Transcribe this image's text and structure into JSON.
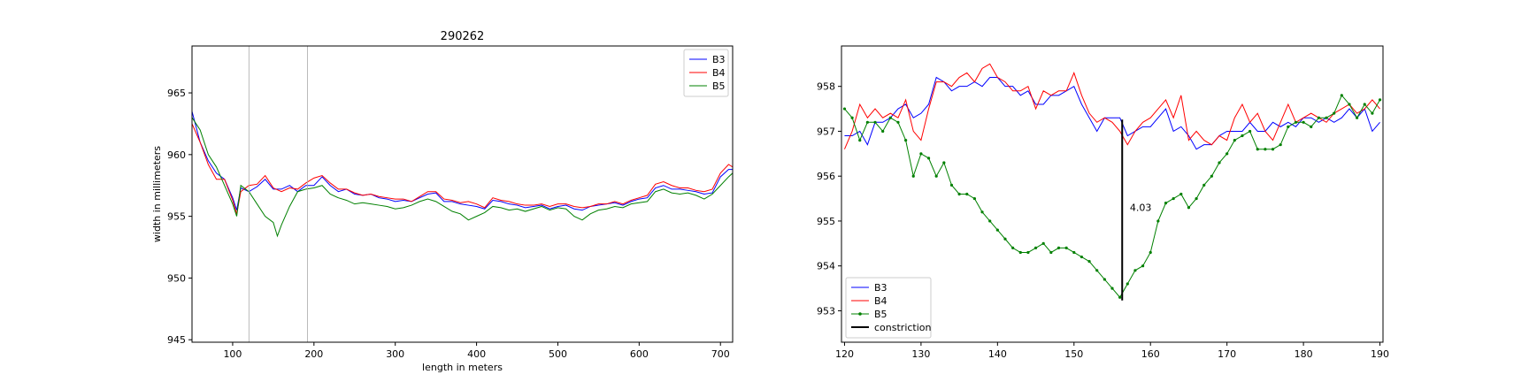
{
  "chart_data": [
    {
      "type": "line",
      "title": "290262",
      "xlabel": "length in meters",
      "ylabel": "width in millimeters",
      "xlim": [
        50,
        715
      ],
      "ylim": [
        944.8,
        968.8
      ],
      "xticks": [
        100,
        200,
        300,
        400,
        500,
        600,
        700
      ],
      "yticks": [
        945,
        950,
        955,
        960,
        965
      ],
      "vlines": [
        120,
        192
      ],
      "legend_position": "upper right",
      "grid": false,
      "series": [
        {
          "name": "B3",
          "color": "#0000ff",
          "x": [
            50,
            60,
            70,
            80,
            90,
            100,
            105,
            110,
            120,
            130,
            140,
            150,
            160,
            170,
            180,
            190,
            200,
            210,
            220,
            230,
            240,
            250,
            260,
            270,
            280,
            290,
            300,
            310,
            320,
            330,
            340,
            350,
            360,
            370,
            380,
            390,
            400,
            410,
            420,
            430,
            440,
            450,
            460,
            470,
            480,
            490,
            500,
            510,
            520,
            530,
            540,
            550,
            560,
            570,
            580,
            590,
            600,
            610,
            620,
            630,
            640,
            650,
            660,
            670,
            680,
            690,
            700,
            710,
            715
          ],
          "y": [
            963.5,
            961.0,
            959.5,
            958.5,
            958.0,
            956.5,
            955.5,
            957.3,
            957.0,
            957.4,
            958.0,
            957.2,
            957.2,
            957.5,
            957.0,
            957.5,
            957.5,
            958.2,
            957.5,
            957.0,
            957.2,
            956.8,
            956.7,
            956.8,
            956.5,
            956.4,
            956.2,
            956.3,
            956.2,
            956.5,
            956.8,
            956.9,
            956.2,
            956.2,
            956.0,
            955.9,
            955.8,
            955.6,
            956.3,
            956.2,
            956.0,
            955.9,
            955.7,
            955.8,
            955.9,
            955.6,
            955.8,
            955.9,
            955.6,
            955.5,
            955.8,
            955.9,
            956.0,
            956.1,
            955.9,
            956.2,
            956.4,
            956.5,
            957.3,
            957.5,
            957.2,
            957.2,
            957.1,
            957.0,
            956.8,
            956.9,
            958.2,
            958.8,
            958.8
          ]
        },
        {
          "name": "B4",
          "color": "#ff0000",
          "x": [
            50,
            60,
            70,
            80,
            90,
            100,
            105,
            110,
            120,
            130,
            140,
            150,
            160,
            170,
            180,
            190,
            200,
            210,
            220,
            230,
            240,
            250,
            260,
            270,
            280,
            290,
            300,
            310,
            320,
            330,
            340,
            350,
            360,
            370,
            380,
            390,
            400,
            410,
            420,
            430,
            440,
            450,
            460,
            470,
            480,
            490,
            500,
            510,
            520,
            530,
            540,
            550,
            560,
            570,
            580,
            590,
            600,
            610,
            620,
            630,
            640,
            650,
            660,
            670,
            680,
            690,
            700,
            710,
            715
          ],
          "y": [
            962.5,
            961.0,
            959.2,
            958.0,
            958.0,
            956.3,
            955.2,
            957.0,
            957.5,
            957.6,
            958.3,
            957.3,
            957.0,
            957.3,
            957.2,
            957.7,
            958.1,
            958.3,
            957.7,
            957.2,
            957.2,
            956.9,
            956.7,
            956.8,
            956.6,
            956.5,
            956.4,
            956.4,
            956.2,
            956.6,
            957.0,
            957.0,
            956.4,
            956.3,
            956.1,
            956.2,
            956.0,
            955.7,
            956.5,
            956.3,
            956.2,
            956.0,
            955.9,
            955.9,
            956.0,
            955.8,
            956.0,
            956.0,
            955.8,
            955.7,
            955.8,
            956.0,
            956.0,
            956.2,
            956.0,
            956.3,
            956.5,
            956.7,
            957.6,
            957.8,
            957.5,
            957.3,
            957.3,
            957.1,
            957.0,
            957.2,
            958.5,
            959.2,
            959.0
          ]
        },
        {
          "name": "B5",
          "color": "#008000",
          "x": [
            50,
            60,
            70,
            80,
            90,
            100,
            105,
            110,
            120,
            130,
            140,
            150,
            155,
            160,
            170,
            180,
            190,
            200,
            210,
            220,
            230,
            240,
            250,
            260,
            270,
            280,
            290,
            300,
            310,
            320,
            330,
            340,
            350,
            360,
            370,
            380,
            390,
            400,
            410,
            420,
            430,
            440,
            450,
            460,
            470,
            480,
            490,
            500,
            510,
            520,
            530,
            540,
            550,
            560,
            570,
            580,
            590,
            600,
            610,
            620,
            630,
            640,
            650,
            660,
            670,
            680,
            690,
            700,
            710,
            715
          ],
          "y": [
            963.0,
            962.0,
            960.0,
            959.0,
            957.5,
            956.0,
            955.0,
            957.5,
            957.0,
            956.0,
            955.0,
            954.5,
            953.4,
            954.3,
            955.8,
            957.0,
            957.2,
            957.3,
            957.5,
            956.8,
            956.5,
            956.3,
            956.0,
            956.1,
            956.0,
            955.9,
            955.8,
            955.6,
            955.7,
            955.9,
            956.2,
            956.4,
            956.2,
            955.8,
            955.4,
            955.2,
            954.7,
            955.0,
            955.3,
            955.8,
            955.7,
            955.5,
            955.6,
            955.4,
            955.6,
            955.8,
            955.5,
            955.7,
            955.6,
            955.0,
            954.7,
            955.2,
            955.5,
            955.6,
            955.8,
            955.7,
            956.0,
            956.1,
            956.2,
            957.0,
            957.2,
            956.9,
            956.8,
            956.9,
            956.7,
            956.4,
            956.8,
            957.5,
            958.2,
            958.5
          ]
        }
      ]
    },
    {
      "type": "line",
      "title": "",
      "xlabel": "",
      "ylabel": "",
      "xlim": [
        119.6,
        190.4
      ],
      "ylim": [
        952.3,
        958.9
      ],
      "xticks": [
        120,
        130,
        140,
        150,
        160,
        170,
        180,
        190
      ],
      "yticks": [
        953,
        954,
        955,
        956,
        957,
        958
      ],
      "legend_position": "lower left",
      "grid": false,
      "series": [
        {
          "name": "B3",
          "color": "#0000ff",
          "x": [
            120,
            121,
            122,
            123,
            124,
            125,
            126,
            127,
            128,
            129,
            130,
            131,
            132,
            133,
            134,
            135,
            136,
            137,
            138,
            139,
            140,
            141,
            142,
            143,
            144,
            145,
            146,
            147,
            148,
            149,
            150,
            151,
            152,
            153,
            154,
            155,
            156,
            157,
            158,
            159,
            160,
            161,
            162,
            163,
            164,
            165,
            166,
            167,
            168,
            169,
            170,
            171,
            172,
            173,
            174,
            175,
            176,
            177,
            178,
            179,
            180,
            181,
            182,
            183,
            184,
            185,
            186,
            187,
            188,
            189,
            190
          ],
          "y": [
            956.9,
            956.9,
            957.0,
            956.7,
            957.2,
            957.2,
            957.3,
            957.5,
            957.6,
            957.3,
            957.4,
            957.6,
            958.2,
            958.1,
            957.9,
            958.0,
            958.0,
            958.1,
            958.0,
            958.2,
            958.2,
            958.0,
            958.0,
            957.8,
            957.9,
            957.6,
            957.6,
            957.8,
            957.8,
            957.9,
            958.0,
            957.6,
            957.3,
            957.0,
            957.3,
            957.3,
            957.3,
            956.9,
            957.0,
            957.1,
            957.1,
            957.3,
            957.5,
            957.0,
            957.1,
            956.9,
            956.6,
            956.7,
            956.7,
            956.9,
            957.0,
            957.0,
            957.0,
            957.2,
            957.0,
            957.0,
            957.2,
            957.1,
            957.2,
            957.1,
            957.3,
            957.3,
            957.2,
            957.3,
            957.2,
            957.3,
            957.5,
            957.3,
            957.5,
            957.0,
            957.2
          ]
        },
        {
          "name": "B4",
          "color": "#ff0000",
          "x": [
            120,
            121,
            122,
            123,
            124,
            125,
            126,
            127,
            128,
            129,
            130,
            131,
            132,
            133,
            134,
            135,
            136,
            137,
            138,
            139,
            140,
            141,
            142,
            143,
            144,
            145,
            146,
            147,
            148,
            149,
            150,
            151,
            152,
            153,
            154,
            155,
            156,
            157,
            158,
            159,
            160,
            161,
            162,
            163,
            164,
            165,
            166,
            167,
            168,
            169,
            170,
            171,
            172,
            173,
            174,
            175,
            176,
            177,
            178,
            179,
            180,
            181,
            182,
            183,
            184,
            185,
            186,
            187,
            188,
            189,
            190
          ],
          "y": [
            956.6,
            957.0,
            957.6,
            957.3,
            957.5,
            957.3,
            957.4,
            957.3,
            957.7,
            957.0,
            956.8,
            957.5,
            958.1,
            958.1,
            958.0,
            958.2,
            958.3,
            958.1,
            958.4,
            958.5,
            958.2,
            958.1,
            957.9,
            957.9,
            958.0,
            957.5,
            957.9,
            957.8,
            957.9,
            957.9,
            958.3,
            957.8,
            957.4,
            957.2,
            957.3,
            957.2,
            957.0,
            956.7,
            957.0,
            957.2,
            957.3,
            957.5,
            957.7,
            957.3,
            957.8,
            956.8,
            957.0,
            956.8,
            956.7,
            956.9,
            956.8,
            957.3,
            957.6,
            957.2,
            957.4,
            957.0,
            956.8,
            957.2,
            957.6,
            957.2,
            957.3,
            957.4,
            957.3,
            957.2,
            957.4,
            957.5,
            957.6,
            957.4,
            957.5,
            957.7,
            957.5
          ]
        },
        {
          "name": "B5",
          "color": "#008000",
          "x": [
            120,
            121,
            122,
            123,
            124,
            125,
            126,
            127,
            128,
            129,
            130,
            131,
            132,
            133,
            134,
            135,
            136,
            137,
            138,
            139,
            140,
            141,
            142,
            143,
            144,
            145,
            146,
            147,
            148,
            149,
            150,
            151,
            152,
            153,
            154,
            155,
            156,
            157,
            158,
            159,
            160,
            161,
            162,
            163,
            164,
            165,
            166,
            167,
            168,
            169,
            170,
            171,
            172,
            173,
            174,
            175,
            176,
            177,
            178,
            179,
            180,
            181,
            182,
            183,
            184,
            185,
            186,
            187,
            188,
            189,
            190
          ],
          "y": [
            957.5,
            957.3,
            956.8,
            957.2,
            957.2,
            957.0,
            957.3,
            957.2,
            956.8,
            956.0,
            956.5,
            956.4,
            956.0,
            956.3,
            955.8,
            955.6,
            955.6,
            955.5,
            955.2,
            955.0,
            954.8,
            954.6,
            954.4,
            954.3,
            954.3,
            954.4,
            954.5,
            954.3,
            954.4,
            954.4,
            954.3,
            954.2,
            954.1,
            953.9,
            953.7,
            953.5,
            953.3,
            953.6,
            953.9,
            954.0,
            954.3,
            955.0,
            955.4,
            955.5,
            955.6,
            955.3,
            955.5,
            955.8,
            956.0,
            956.3,
            956.5,
            956.8,
            956.9,
            957.0,
            956.6,
            956.6,
            956.6,
            956.7,
            957.1,
            957.2,
            957.2,
            957.1,
            957.3,
            957.3,
            957.4,
            957.8,
            957.6,
            957.3,
            957.6,
            957.4,
            957.7
          ]
        },
        {
          "name": "constriction",
          "color": "#000000",
          "x": [
            156.3,
            156.3
          ],
          "y": [
            957.26,
            953.23
          ]
        }
      ],
      "annotations": [
        {
          "text": "4.03",
          "x": 157.3,
          "y": 955.3
        }
      ]
    }
  ]
}
